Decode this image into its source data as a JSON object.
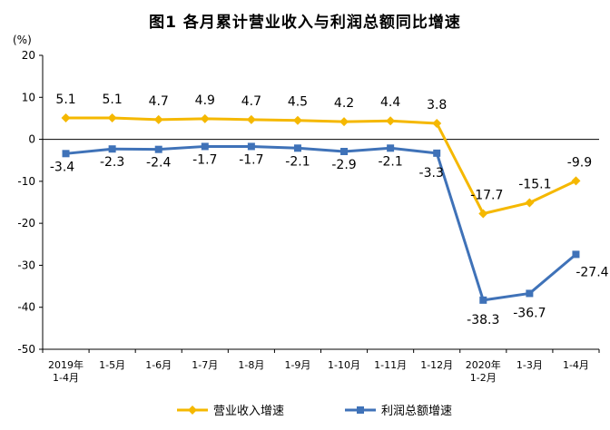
{
  "chart_data": {
    "type": "line",
    "title": "图1  各月累计营业收入与利润总额同比增速",
    "unit_label": "(%)",
    "ylim": [
      -50,
      20
    ],
    "yticks": [
      "20",
      "10",
      "0",
      "-10",
      "-20",
      "-30",
      "-40",
      "-50"
    ],
    "categories": [
      [
        "2019年",
        "1-4月"
      ],
      [
        "1-5月"
      ],
      [
        "1-6月"
      ],
      [
        "1-7月"
      ],
      [
        "1-8月"
      ],
      [
        "1-9月"
      ],
      [
        "1-10月"
      ],
      [
        "1-11月"
      ],
      [
        "1-12月"
      ],
      [
        "2020年",
        "1-2月"
      ],
      [
        "1-3月"
      ],
      [
        "1-4月"
      ]
    ],
    "series": [
      {
        "name": "营业收入增速",
        "color": "#F5B800",
        "marker": "diamond",
        "values": [
          5.1,
          5.1,
          4.7,
          4.9,
          4.7,
          4.5,
          4.2,
          4.4,
          3.8,
          -17.7,
          -15.1,
          -9.9
        ],
        "labels": [
          "5.1",
          "5.1",
          "4.7",
          "4.9",
          "4.7",
          "4.5",
          "4.2",
          "4.4",
          "3.8",
          "-17.7",
          "-15.1",
          "-9.9"
        ]
      },
      {
        "name": "利润总额增速",
        "color": "#3F72B8",
        "marker": "square",
        "values": [
          -3.4,
          -2.3,
          -2.4,
          -1.7,
          -1.7,
          -2.1,
          -2.9,
          -2.1,
          -3.3,
          -38.3,
          -36.7,
          -27.4
        ],
        "labels": [
          "-3.4",
          "-2.3",
          "-2.4",
          "-1.7",
          "-1.7",
          "-2.1",
          "-2.9",
          "-2.1",
          "-3.3",
          "-38.3",
          "-36.7",
          "-27.4"
        ]
      }
    ],
    "grid": false,
    "legend_position": "bottom"
  }
}
